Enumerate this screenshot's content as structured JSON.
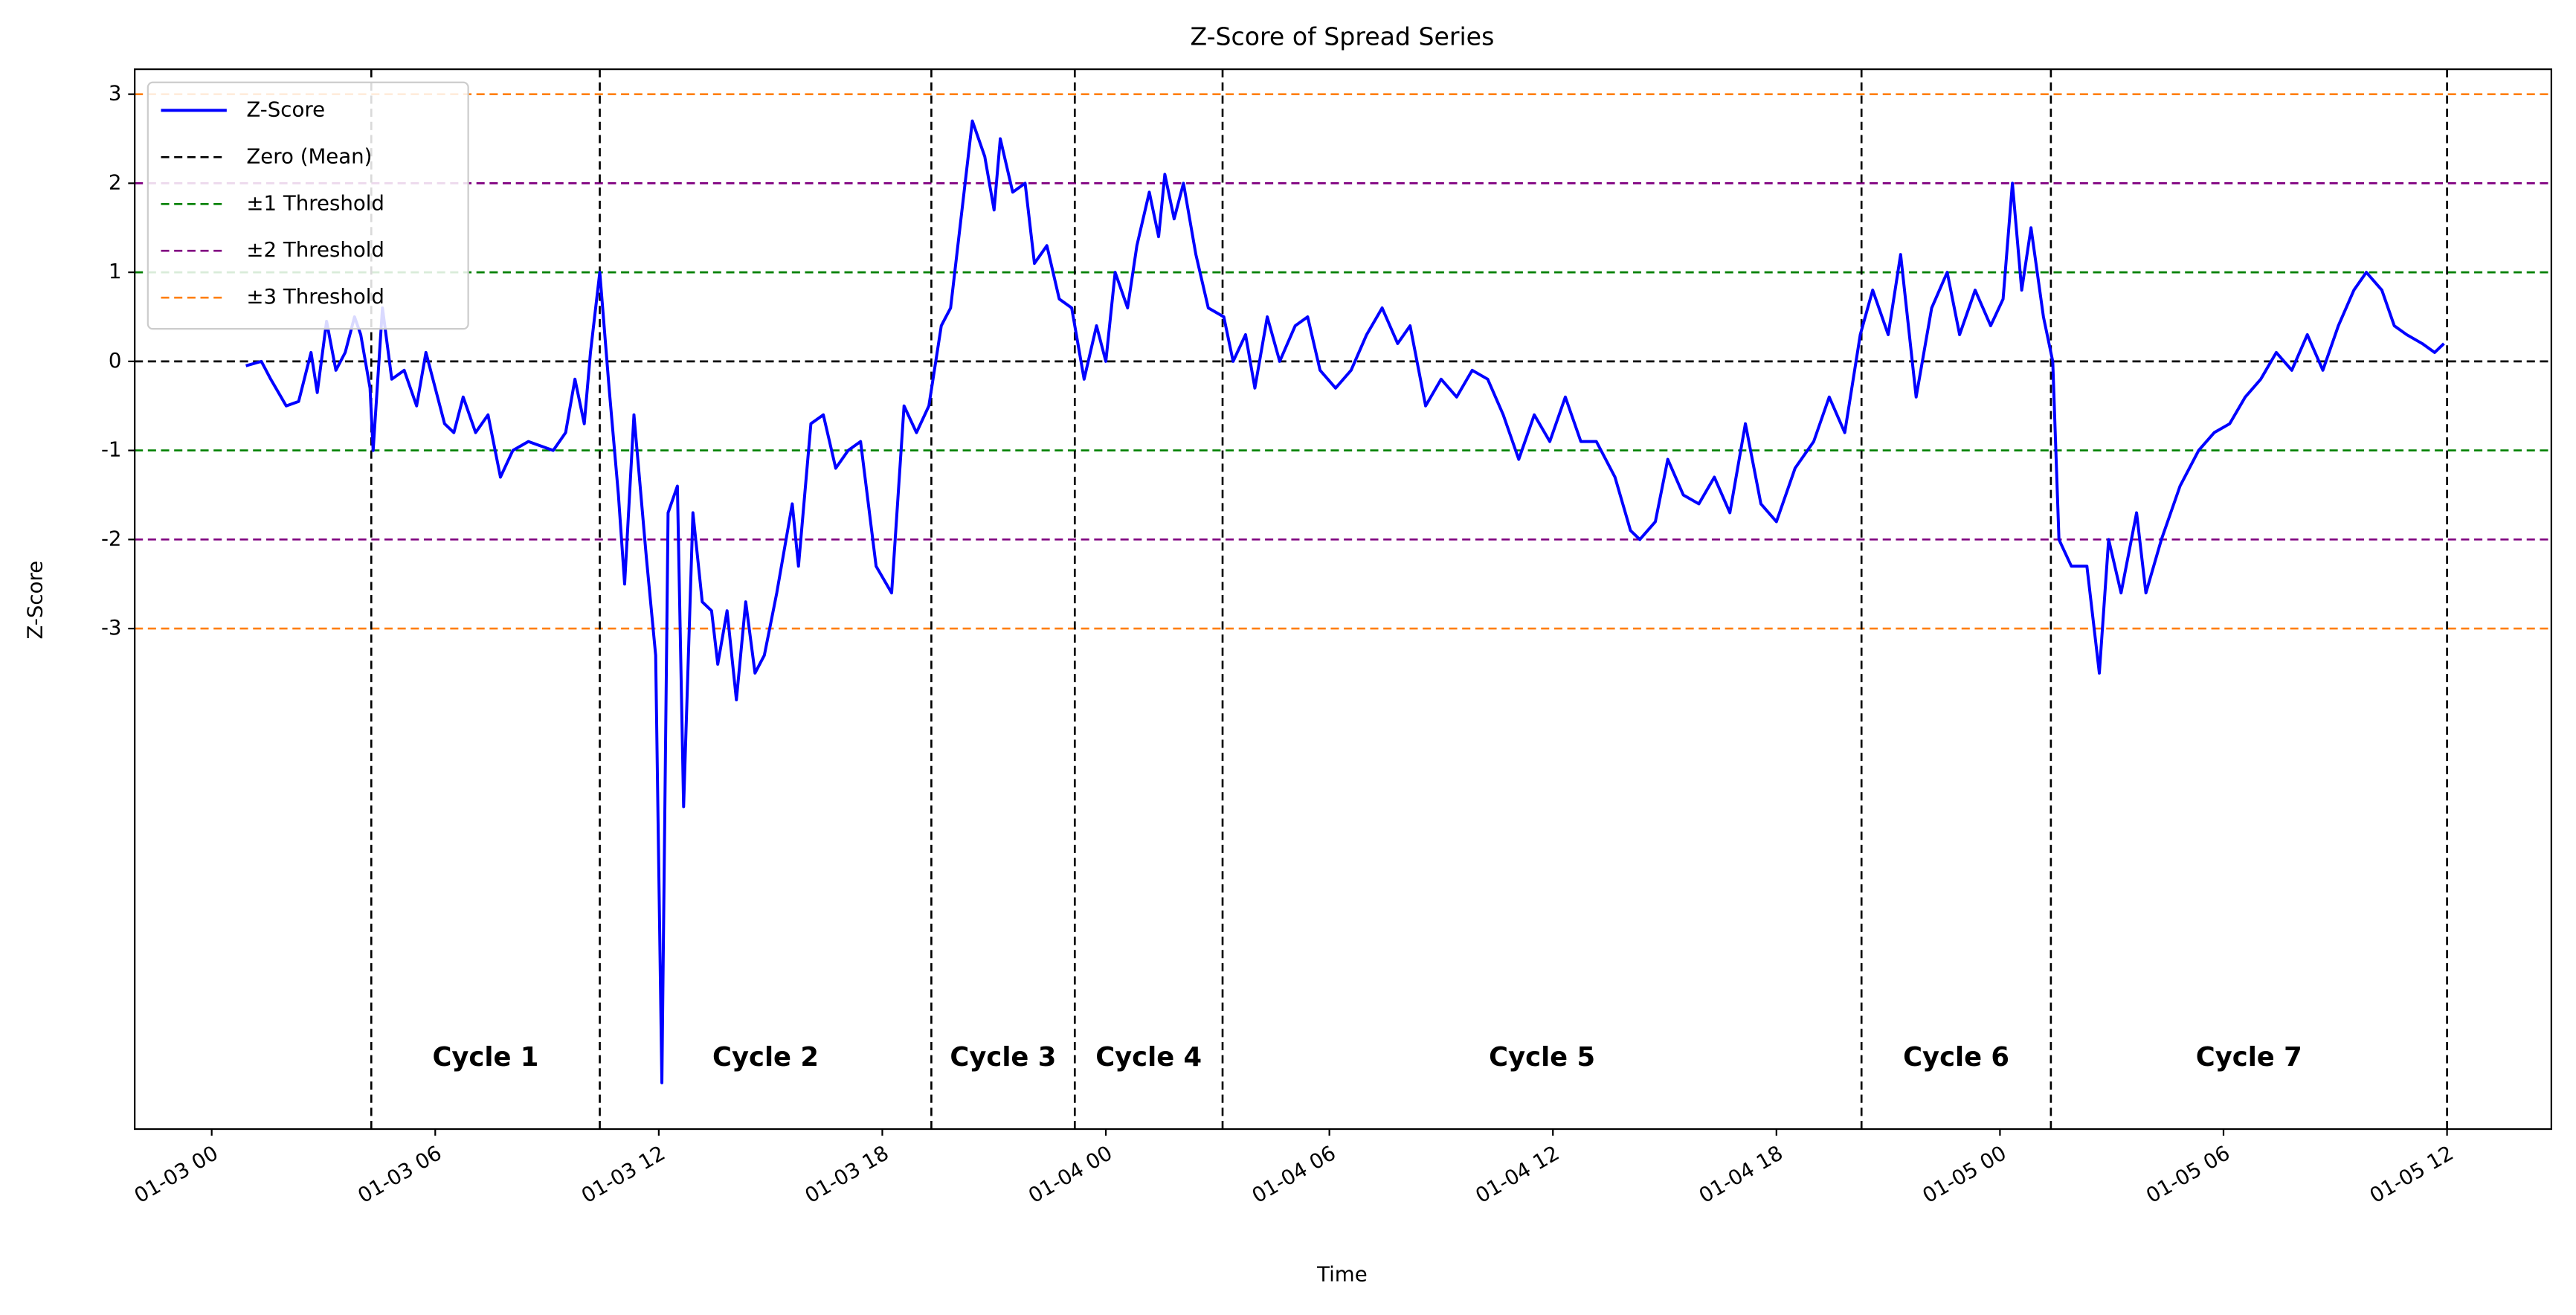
{
  "chart_data": {
    "type": "line",
    "title": "Z-Score of Spread Series",
    "xlabel": "Time",
    "ylabel": "Z-Score",
    "series": [
      {
        "name": "Z-Score",
        "color": "#0000ff",
        "x": [
          "01-03 00:55",
          "01-03 01:10",
          "01-03 01:20",
          "01-03 01:35",
          "01-03 02:00",
          "01-03 02:20",
          "01-03 02:40",
          "01-03 02:50",
          "01-03 03:05",
          "01-03 03:20",
          "01-03 03:35",
          "01-03 03:50",
          "01-03 04:00",
          "01-03 04:15",
          "01-03 04:20",
          "01-03 04:35",
          "01-03 04:50",
          "01-03 05:10",
          "01-03 05:30",
          "01-03 05:45",
          "01-03 06:00",
          "01-03 06:15",
          "01-03 06:30",
          "01-03 06:45",
          "01-03 07:05",
          "01-03 07:25",
          "01-03 07:45",
          "01-03 08:05",
          "01-03 08:30",
          "01-03 08:50",
          "01-03 09:10",
          "01-03 09:30",
          "01-03 09:45",
          "01-03 10:00",
          "01-03 10:10",
          "01-03 10:25",
          "01-03 10:40",
          "01-03 10:55",
          "01-03 11:05",
          "01-03 11:20",
          "01-03 11:40",
          "01-03 11:55",
          "01-03 12:05",
          "01-03 12:15",
          "01-03 12:30",
          "01-03 12:40",
          "01-03 12:55",
          "01-03 13:10",
          "01-03 13:25",
          "01-03 13:35",
          "01-03 13:50",
          "01-03 14:05",
          "01-03 14:20",
          "01-03 14:35",
          "01-03 14:50",
          "01-03 15:10",
          "01-03 15:35",
          "01-03 15:45",
          "01-03 16:05",
          "01-03 16:25",
          "01-03 16:45",
          "01-03 17:05",
          "01-03 17:25",
          "01-03 17:50",
          "01-03 18:15",
          "01-03 18:35",
          "01-03 18:55",
          "01-03 19:15",
          "01-03 19:35",
          "01-03 19:50",
          "01-03 20:10",
          "01-03 20:25",
          "01-03 20:45",
          "01-03 21:00",
          "01-03 21:10",
          "01-03 21:30",
          "01-03 21:50",
          "01-03 22:05",
          "01-03 22:25",
          "01-03 22:45",
          "01-03 23:05",
          "01-03 23:25",
          "01-03 23:45",
          "01-04 00:00",
          "01-04 00:15",
          "01-04 00:35",
          "01-04 00:50",
          "01-04 01:10",
          "01-04 01:25",
          "01-04 01:35",
          "01-04 01:50",
          "01-04 02:05",
          "01-04 02:25",
          "01-04 02:45",
          "01-04 03:10",
          "01-04 03:25",
          "01-04 03:45",
          "01-04 04:00",
          "01-04 04:20",
          "01-04 04:40",
          "01-04 05:05",
          "01-04 05:25",
          "01-04 05:45",
          "01-04 06:10",
          "01-04 06:35",
          "01-04 07:00",
          "01-04 07:25",
          "01-04 07:50",
          "01-04 08:10",
          "01-04 08:35",
          "01-04 09:00",
          "01-04 09:25",
          "01-04 09:50",
          "01-04 10:15",
          "01-04 10:40",
          "01-04 11:05",
          "01-04 11:30",
          "01-04 11:55",
          "01-04 12:20",
          "01-04 12:45",
          "01-04 13:10",
          "01-04 13:40",
          "01-04 14:05",
          "01-04 14:20",
          "01-04 14:45",
          "01-04 15:05",
          "01-04 15:30",
          "01-04 15:55",
          "01-04 16:20",
          "01-04 16:45",
          "01-04 17:10",
          "01-04 17:35",
          "01-04 18:00",
          "01-04 18:30",
          "01-04 19:00",
          "01-04 19:25",
          "01-04 19:50",
          "01-04 20:15",
          "01-04 20:35",
          "01-04 21:00",
          "01-04 21:20",
          "01-04 21:45",
          "01-04 22:10",
          "01-04 22:35",
          "01-04 22:55",
          "01-04 23:20",
          "01-04 23:45",
          "01-05 00:05",
          "01-05 00:20",
          "01-05 00:35",
          "01-05 00:50",
          "01-05 01:10",
          "01-05 01:25",
          "01-05 01:35",
          "01-05 01:55",
          "01-05 02:20",
          "01-05 02:40",
          "01-05 02:55",
          "01-05 03:15",
          "01-05 03:40",
          "01-05 03:55",
          "01-05 04:20",
          "01-05 04:50",
          "01-05 05:20",
          "01-05 05:45",
          "01-05 06:10",
          "01-05 06:35",
          "01-05 07:00",
          "01-05 07:25",
          "01-05 07:50",
          "01-05 08:15",
          "01-05 08:40",
          "01-05 09:05",
          "01-05 09:30",
          "01-05 09:50",
          "01-05 10:15",
          "01-05 10:35",
          "01-05 10:55",
          "01-05 11:20",
          "01-05 11:40",
          "01-05 11:55"
        ],
        "values": [
          -0.05,
          -0.02,
          0.0,
          -0.2,
          -0.5,
          -0.45,
          0.1,
          -0.35,
          0.45,
          -0.1,
          0.1,
          0.5,
          0.3,
          -0.3,
          -1.0,
          0.6,
          -0.2,
          -0.1,
          -0.5,
          0.1,
          -0.3,
          -0.7,
          -0.8,
          -0.4,
          -0.8,
          -0.6,
          -1.3,
          -1.0,
          -0.9,
          -0.95,
          -1.0,
          -0.8,
          -0.2,
          -0.7,
          0.1,
          1.0,
          -0.3,
          -1.5,
          -2.5,
          -0.6,
          -2.2,
          -3.3,
          -8.1,
          -1.7,
          -1.4,
          -5.0,
          -1.7,
          -2.7,
          -2.8,
          -3.4,
          -2.8,
          -3.8,
          -2.7,
          -3.5,
          -3.3,
          -2.6,
          -1.6,
          -2.3,
          -0.7,
          -0.6,
          -1.2,
          -1.0,
          -0.9,
          -2.3,
          -2.6,
          -0.5,
          -0.8,
          -0.5,
          0.4,
          0.6,
          1.8,
          2.7,
          2.3,
          1.7,
          2.5,
          1.9,
          2.0,
          1.1,
          1.3,
          0.7,
          0.6,
          -0.2,
          0.4,
          0.0,
          1.0,
          0.6,
          1.3,
          1.9,
          1.4,
          2.1,
          1.6,
          2.0,
          1.2,
          0.6,
          0.5,
          0.0,
          0.3,
          -0.3,
          0.5,
          0.0,
          0.4,
          0.5,
          -0.1,
          -0.3,
          -0.1,
          0.3,
          0.6,
          0.2,
          0.4,
          -0.5,
          -0.2,
          -0.4,
          -0.1,
          -0.2,
          -0.6,
          -1.1,
          -0.6,
          -0.9,
          -0.4,
          -0.9,
          -0.9,
          -1.3,
          -1.9,
          -2.0,
          -1.8,
          -1.1,
          -1.5,
          -1.6,
          -1.3,
          -1.7,
          -0.7,
          -1.6,
          -1.8,
          -1.2,
          -0.9,
          -0.4,
          -0.8,
          0.3,
          0.8,
          0.3,
          1.2,
          -0.4,
          0.6,
          1.0,
          0.3,
          0.8,
          0.4,
          0.7,
          2.0,
          0.8,
          1.5,
          0.5,
          0.0,
          -2.0,
          -2.3,
          -2.3,
          -3.5,
          -2.0,
          -2.6,
          -1.7,
          -2.6,
          -2.0,
          -1.4,
          -1.0,
          -0.8,
          -0.7,
          -0.4,
          -0.2,
          0.1,
          -0.1,
          0.3,
          -0.1,
          0.4,
          0.8,
          1.0,
          0.8,
          0.4,
          0.3,
          0.2,
          0.1,
          0.2
        ]
      }
    ],
    "reference_lines": [
      {
        "name": "Zero (Mean)",
        "color": "#000000",
        "values": [
          0
        ]
      },
      {
        "name": "±1 Threshold",
        "color": "#008000",
        "values": [
          1,
          -1
        ]
      },
      {
        "name": "±2 Threshold",
        "color": "#800080",
        "values": [
          2,
          -2
        ]
      },
      {
        "name": "±3 Threshold",
        "color": "#ff7f0e",
        "values": [
          3,
          -3
        ]
      }
    ],
    "cycles": {
      "boundaries": [
        "01-03 04:17",
        "01-03 10:25",
        "01-03 19:19",
        "01-03 23:10",
        "01-04 03:08",
        "01-04 20:17",
        "01-05 01:22",
        "01-05 12:00"
      ],
      "labels": [
        "Cycle 1",
        "Cycle 2",
        "Cycle 3",
        "Cycle 4",
        "Cycle 5",
        "Cycle 6",
        "Cycle 7"
      ]
    },
    "xlim": [
      "01-02 21:56",
      "01-05 14:48"
    ],
    "xticks": [
      {
        "value": "01-03 00:00",
        "label": "01-03 00"
      },
      {
        "value": "01-03 06:00",
        "label": "01-03 06"
      },
      {
        "value": "01-03 12:00",
        "label": "01-03 12"
      },
      {
        "value": "01-03 18:00",
        "label": "01-03 18"
      },
      {
        "value": "01-04 00:00",
        "label": "01-04 00"
      },
      {
        "value": "01-04 06:00",
        "label": "01-04 06"
      },
      {
        "value": "01-04 12:00",
        "label": "01-04 12"
      },
      {
        "value": "01-04 18:00",
        "label": "01-04 18"
      },
      {
        "value": "01-05 00:00",
        "label": "01-05 00"
      },
      {
        "value": "01-05 06:00",
        "label": "01-05 06"
      },
      {
        "value": "01-05 12:00",
        "label": "01-05 12"
      }
    ],
    "ylim": [
      -8.62,
      3.28
    ],
    "yticks": [
      -3,
      -2,
      -1,
      0,
      1,
      2,
      3
    ],
    "grid": false,
    "legend": "upper left"
  }
}
